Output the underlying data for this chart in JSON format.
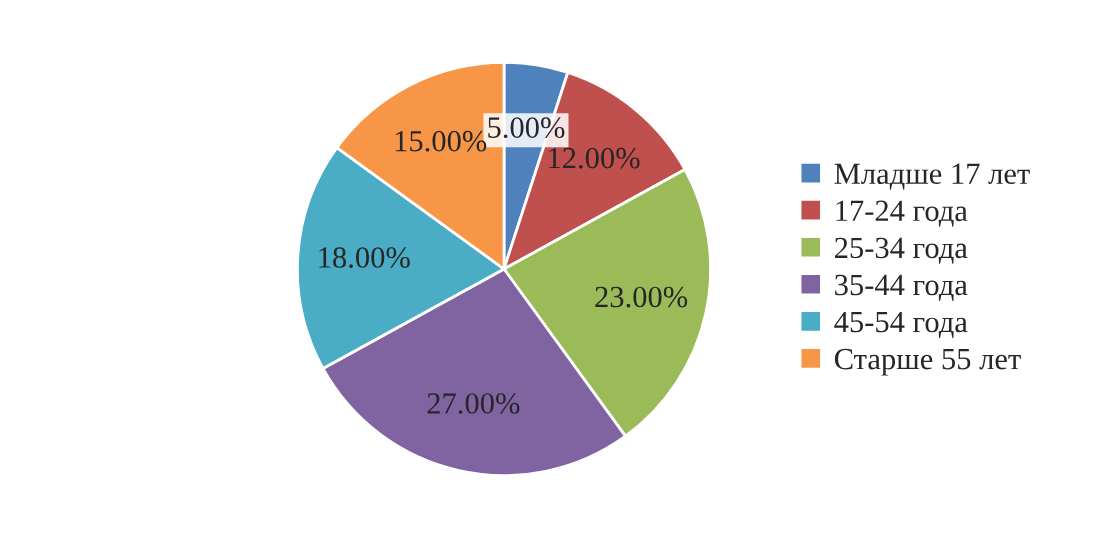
{
  "chart_data": {
    "type": "pie",
    "categories": [
      "Младше 17 лет",
      "17-24 года",
      "25-34 года",
      "35-44 года",
      "45-54 года",
      "Старше 55 лет"
    ],
    "values": [
      5,
      12,
      23,
      27,
      18,
      15
    ],
    "value_labels": [
      "5.00%",
      "12.00%",
      "23.00%",
      "27.00%",
      "18.00%",
      "15.00%"
    ],
    "colors": [
      "#4f81bd",
      "#c0504d",
      "#9bbb59",
      "#8064a2",
      "#4bacc6",
      "#f79646"
    ],
    "legend": "right"
  }
}
